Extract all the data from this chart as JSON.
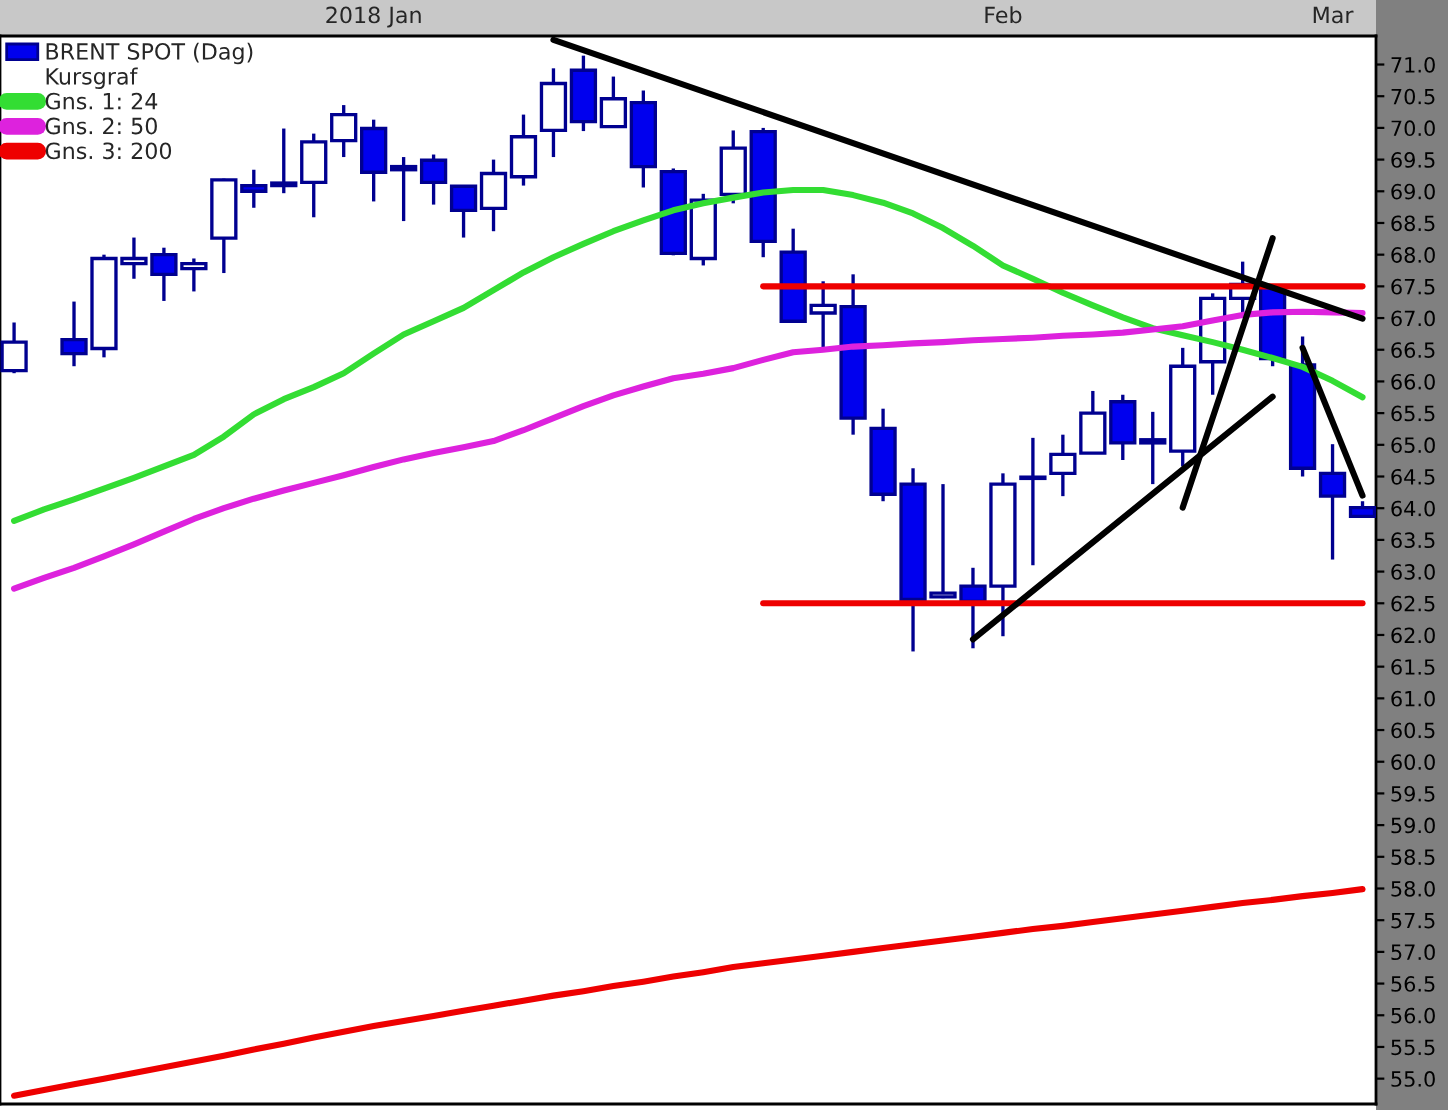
{
  "chart_data": {
    "type": "candlestick",
    "categories": [
      null,
      null,
      null,
      null,
      null,
      null,
      null,
      null,
      null,
      null,
      null,
      null,
      "2018 Jan",
      null,
      null,
      null,
      null,
      null,
      null,
      null,
      null,
      null,
      null,
      null,
      null,
      null,
      null,
      null,
      null,
      null,
      null,
      null,
      null,
      "Feb",
      null,
      null,
      null,
      null,
      null,
      null,
      null,
      null,
      null,
      null,
      "Mar",
      null
    ],
    "ylim": [
      54.6,
      71.45
    ],
    "yticks": [
      {
        "value": 55,
        "label": "55.0"
      },
      {
        "value": 55.5,
        "label": "55.5"
      },
      {
        "value": 56,
        "label": "56.0"
      },
      {
        "value": 56.5,
        "label": "56.5"
      },
      {
        "value": 57,
        "label": "57.0"
      },
      {
        "value": 57.5,
        "label": "57.5"
      },
      {
        "value": 58,
        "label": "58.0"
      },
      {
        "value": 58.5,
        "label": "58.5"
      },
      {
        "value": 59,
        "label": "59.0"
      },
      {
        "value": 59.5,
        "label": "59.5"
      },
      {
        "value": 60,
        "label": "60.0"
      },
      {
        "value": 60.5,
        "label": "60.5"
      },
      {
        "value": 61,
        "label": "61.0"
      },
      {
        "value": 61.5,
        "label": "61.5"
      },
      {
        "value": 62,
        "label": "62.0"
      },
      {
        "value": 62.5,
        "label": "62.5"
      },
      {
        "value": 63,
        "label": "63.0"
      },
      {
        "value": 63.5,
        "label": "63.5"
      },
      {
        "value": 64,
        "label": "64.0"
      },
      {
        "value": 64.5,
        "label": "64.5"
      },
      {
        "value": 65,
        "label": "65.0"
      },
      {
        "value": 65.5,
        "label": "65.5"
      },
      {
        "value": 66,
        "label": "66.0"
      },
      {
        "value": 66.5,
        "label": "66.5"
      },
      {
        "value": 67,
        "label": "67.0"
      },
      {
        "value": 67.5,
        "label": "67.5"
      },
      {
        "value": 68,
        "label": "68.0"
      },
      {
        "value": 68.5,
        "label": "68.5"
      },
      {
        "value": 69,
        "label": "69.0"
      },
      {
        "value": 69.5,
        "label": "69.5"
      },
      {
        "value": 70,
        "label": "70.0"
      },
      {
        "value": 70.5,
        "label": "70.5"
      },
      {
        "value": 71,
        "label": "71.0"
      }
    ],
    "grid": false,
    "legend": "top left",
    "marker": "none",
    "line_style": "solid",
    "annotations": [
      "Kursgraf"
    ],
    "series": [
      {
        "type": "candlestick",
        "name": "BRENT SPOT (Dag)",
        "color": "#0000ee",
        "colors": [
          "#ffffff",
          null,
          "#0000ee",
          "#ffffff",
          "#ffffff",
          "#0000ee",
          "#ffffff",
          "#ffffff",
          "#0000ee",
          "#ffffff",
          "#ffffff",
          "#ffffff",
          "#0000ee",
          "#0000ee",
          "#0000ee",
          "#0000ee",
          "#ffffff",
          "#ffffff",
          "#ffffff",
          "#0000ee",
          "#ffffff",
          "#0000ee",
          "#0000ee",
          "#ffffff",
          "#ffffff",
          "#0000ee",
          "#0000ee",
          "#ffffff",
          "#0000ee",
          "#0000ee",
          "#0000ee",
          "#ffffff",
          "#0000ee",
          "#ffffff",
          "#ffffff",
          "#ffffff",
          "#ffffff",
          "#0000ee",
          "#0000ee",
          "#ffffff",
          "#ffffff",
          "#ffffff",
          "#0000ee",
          "#0000ee",
          "#0000ee",
          "#0000ee"
        ],
        "ohlc": [
          [
            66.17,
            66.93,
            66.13,
            66.62
          ],
          null,
          [
            66.66,
            67.26,
            66.24,
            66.44
          ],
          [
            66.52,
            68.0,
            66.38,
            67.94
          ],
          [
            67.86,
            68.27,
            67.62,
            67.94
          ],
          [
            68.0,
            68.11,
            67.27,
            67.69
          ],
          [
            67.78,
            67.94,
            67.42,
            67.86
          ],
          [
            68.26,
            69.2,
            67.71,
            69.18
          ],
          [
            69.09,
            69.34,
            68.74,
            69.0
          ],
          [
            69.09,
            69.99,
            68.97,
            69.13
          ],
          [
            69.14,
            69.91,
            68.59,
            69.78
          ],
          [
            69.8,
            70.36,
            69.54,
            70.21
          ],
          [
            69.99,
            70.13,
            68.84,
            69.3
          ],
          [
            69.39,
            69.54,
            68.53,
            69.34
          ],
          [
            69.49,
            69.58,
            68.79,
            69.14
          ],
          [
            69.08,
            69.08,
            68.27,
            68.7
          ],
          [
            68.73,
            69.5,
            68.37,
            69.28
          ],
          [
            69.23,
            70.21,
            69.09,
            69.86
          ],
          [
            69.96,
            70.94,
            69.54,
            70.7
          ],
          [
            70.91,
            71.14,
            69.95,
            70.1
          ],
          [
            70.02,
            70.81,
            70.02,
            70.46
          ],
          [
            70.4,
            70.59,
            69.06,
            69.39
          ],
          [
            69.31,
            69.36,
            67.99,
            68.02
          ],
          [
            67.94,
            68.96,
            67.83,
            68.86
          ],
          [
            68.95,
            69.96,
            68.81,
            69.68
          ],
          [
            69.94,
            70.0,
            67.96,
            68.21
          ],
          [
            68.04,
            68.41,
            66.95,
            66.95
          ],
          [
            67.08,
            67.58,
            66.5,
            67.2
          ],
          [
            67.18,
            67.69,
            65.16,
            65.42
          ],
          [
            65.26,
            65.57,
            64.11,
            64.22
          ],
          [
            64.38,
            64.63,
            61.74,
            62.56
          ],
          [
            62.6,
            64.38,
            62.58,
            62.66
          ],
          [
            62.77,
            63.06,
            61.79,
            62.53
          ],
          [
            62.77,
            64.55,
            61.98,
            64.38
          ],
          [
            64.47,
            65.11,
            63.1,
            64.49
          ],
          [
            64.55,
            65.16,
            64.19,
            64.85
          ],
          [
            64.87,
            65.85,
            64.87,
            65.5
          ],
          [
            65.68,
            65.79,
            64.76,
            65.03
          ],
          [
            65.08,
            65.52,
            64.38,
            65.03
          ],
          [
            64.9,
            66.53,
            64.66,
            66.24
          ],
          [
            66.31,
            67.39,
            65.79,
            67.31
          ],
          [
            67.31,
            67.89,
            67.08,
            67.53
          ],
          [
            67.48,
            67.53,
            66.24,
            66.36
          ],
          [
            66.26,
            66.71,
            64.5,
            64.63
          ],
          [
            64.55,
            65.01,
            63.19,
            64.19
          ],
          [
            64.01,
            64.11,
            63.87,
            63.87
          ]
        ]
      },
      {
        "type": "line",
        "name": "Gns. 1: 24",
        "color": "#33dd33",
        "values": [
          63.8,
          63.98,
          64.14,
          64.31,
          64.48,
          64.66,
          64.84,
          65.13,
          65.48,
          65.72,
          65.91,
          66.13,
          66.44,
          66.74,
          66.95,
          67.16,
          67.44,
          67.72,
          67.96,
          68.17,
          68.37,
          68.54,
          68.7,
          68.81,
          68.9,
          68.98,
          69.02,
          69.02,
          68.94,
          68.82,
          68.65,
          68.42,
          68.14,
          67.83,
          67.62,
          67.4,
          67.2,
          67.01,
          66.84,
          66.73,
          66.62,
          66.5,
          66.37,
          66.23,
          66.01,
          65.75
        ]
      },
      {
        "type": "line",
        "name": "Gns. 2: 50",
        "color": "#dd22dd",
        "values": [
          62.73,
          62.9,
          63.06,
          63.24,
          63.43,
          63.63,
          63.83,
          64.0,
          64.15,
          64.28,
          64.4,
          64.52,
          64.65,
          64.77,
          64.87,
          64.96,
          65.06,
          65.23,
          65.42,
          65.61,
          65.78,
          65.92,
          66.05,
          66.12,
          66.21,
          66.34,
          66.46,
          66.5,
          66.55,
          66.57,
          66.6,
          66.62,
          66.65,
          66.67,
          66.69,
          66.72,
          66.74,
          66.77,
          66.82,
          66.87,
          66.96,
          67.05,
          67.09,
          67.1,
          67.09,
          67.08
        ]
      },
      {
        "type": "line",
        "name": "Gns. 3: 200",
        "color": "#ee0000",
        "values": [
          54.73,
          54.82,
          54.91,
          55.0,
          55.09,
          55.18,
          55.27,
          55.36,
          55.46,
          55.55,
          55.65,
          55.74,
          55.83,
          55.91,
          55.99,
          56.07,
          56.15,
          56.23,
          56.31,
          56.38,
          56.46,
          56.53,
          56.61,
          56.68,
          56.76,
          56.82,
          56.88,
          56.94,
          57.0,
          57.06,
          57.12,
          57.18,
          57.24,
          57.3,
          57.36,
          57.41,
          57.47,
          57.53,
          57.59,
          57.65,
          57.71,
          57.77,
          57.82,
          57.88,
          57.93,
          57.99
        ]
      },
      {
        "type": "line",
        "color": "#ee0000",
        "values": [
          null,
          null,
          null,
          null,
          null,
          null,
          null,
          null,
          null,
          null,
          null,
          null,
          null,
          null,
          null,
          null,
          null,
          null,
          null,
          null,
          null,
          null,
          null,
          null,
          null,
          67.5,
          null,
          null,
          null,
          null,
          null,
          null,
          null,
          null,
          null,
          null,
          null,
          null,
          null,
          null,
          null,
          null,
          null,
          null,
          null,
          67.5
        ]
      },
      {
        "type": "line",
        "color": "#ee0000",
        "values": [
          null,
          null,
          null,
          null,
          null,
          null,
          null,
          null,
          null,
          null,
          null,
          null,
          null,
          null,
          null,
          null,
          null,
          null,
          null,
          null,
          null,
          null,
          null,
          null,
          null,
          62.5,
          null,
          null,
          null,
          null,
          null,
          null,
          null,
          null,
          null,
          null,
          null,
          null,
          null,
          null,
          null,
          null,
          null,
          null,
          null,
          62.5
        ]
      },
      {
        "type": "line",
        "color": "#000000",
        "values": [
          null,
          null,
          null,
          null,
          null,
          null,
          null,
          null,
          null,
          null,
          null,
          null,
          null,
          null,
          null,
          null,
          null,
          null,
          71.39,
          null,
          null,
          null,
          null,
          null,
          null,
          null,
          null,
          null,
          null,
          null,
          null,
          null,
          null,
          null,
          null,
          null,
          null,
          null,
          null,
          null,
          null,
          null,
          null,
          null,
          null,
          66.99
        ]
      },
      {
        "type": "line",
        "color": "#000000",
        "values": [
          null,
          null,
          null,
          null,
          null,
          null,
          null,
          null,
          null,
          null,
          null,
          null,
          null,
          null,
          null,
          null,
          null,
          null,
          null,
          null,
          null,
          null,
          null,
          null,
          null,
          null,
          null,
          null,
          null,
          null,
          null,
          null,
          61.93,
          null,
          null,
          null,
          null,
          null,
          null,
          null,
          null,
          null,
          65.76,
          null,
          null,
          null
        ]
      },
      {
        "type": "line",
        "color": "#000000",
        "values": [
          null,
          null,
          null,
          null,
          null,
          null,
          null,
          null,
          null,
          null,
          null,
          null,
          null,
          null,
          null,
          null,
          null,
          null,
          null,
          null,
          null,
          null,
          null,
          null,
          null,
          null,
          null,
          null,
          null,
          null,
          null,
          null,
          null,
          null,
          null,
          null,
          null,
          null,
          null,
          64.01,
          null,
          null,
          68.26,
          null,
          null,
          null
        ]
      },
      {
        "type": "line",
        "color": "#000000",
        "values": [
          null,
          null,
          null,
          null,
          null,
          null,
          null,
          null,
          null,
          null,
          null,
          null,
          null,
          null,
          null,
          null,
          null,
          null,
          null,
          null,
          null,
          null,
          null,
          null,
          null,
          null,
          null,
          null,
          null,
          null,
          null,
          null,
          null,
          null,
          null,
          null,
          null,
          null,
          null,
          null,
          null,
          null,
          null,
          66.53,
          null,
          64.2
        ]
      }
    ]
  }
}
